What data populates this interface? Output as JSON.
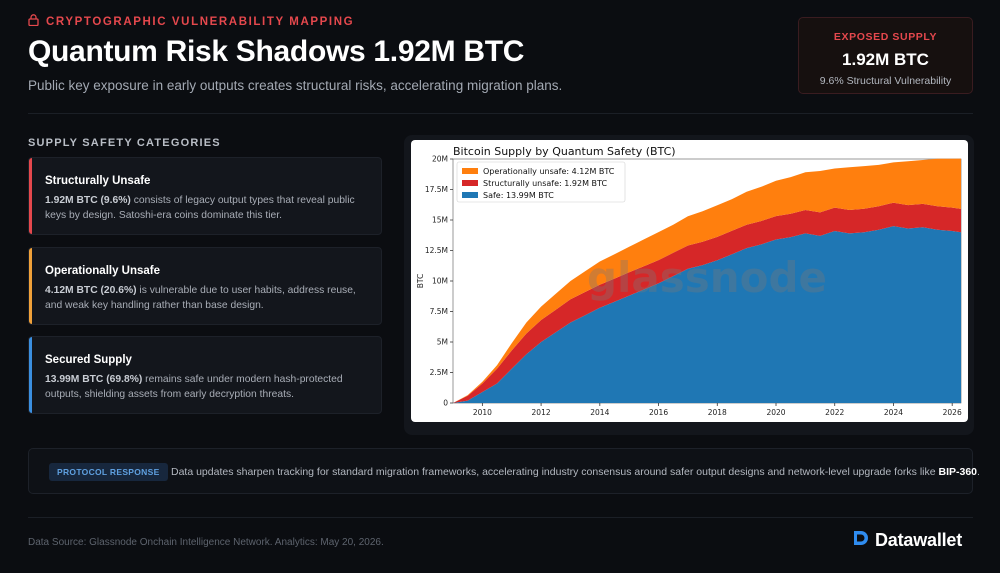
{
  "header": {
    "eyebrow": "CRYPTOGRAPHIC VULNERABILITY MAPPING",
    "title": "Quantum Risk Shadows 1.92M BTC",
    "subtitle": "Public key exposure in early outputs creates structural risks, accelerating migration plans."
  },
  "kpi": {
    "label": "EXPOSED SUPPLY",
    "value": "1.92M BTC",
    "sub": "9.6% Structural Vulnerability"
  },
  "categories": {
    "title": "SUPPLY SAFETY CATEGORIES",
    "items": [
      {
        "title": "Structurally Unsafe",
        "value": "1.92M BTC (9.6%)",
        "text": " consists of legacy output types that reveal public keys by design. Satoshi-era coins dominate this tier.",
        "color": "#e5484d"
      },
      {
        "title": "Operationally Unsafe",
        "value": "4.12M BTC (20.6%)",
        "text": " is vulnerable due to user habits, address reuse, and weak key handling rather than base design.",
        "color": "#f0a13a"
      },
      {
        "title": "Secured Supply",
        "value": "13.99M BTC (69.8%)",
        "text": " remains safe under modern hash-protected outputs, shielding assets from early decryption threats.",
        "color": "#3b8fe0"
      }
    ]
  },
  "chart_data": {
    "type": "area",
    "stacked": true,
    "title": "Bitcoin Supply by Quantum Safety (BTC)",
    "xlabel": "",
    "ylabel": "BTC",
    "watermark": "glassnode",
    "xlim": [
      2009,
      2026.3
    ],
    "ylim": [
      0,
      20000000
    ],
    "xticks": [
      "2010",
      "2012",
      "2014",
      "2016",
      "2018",
      "2020",
      "2022",
      "2024",
      "2026"
    ],
    "yticks": [
      "0",
      "2.5M",
      "5M",
      "7.5M",
      "10M",
      "12.5M",
      "15M",
      "17.5M",
      "20M"
    ],
    "legend_position": "top-left",
    "x": [
      2009,
      2009.5,
      2010,
      2010.5,
      2011,
      2011.5,
      2012,
      2012.5,
      2013,
      2013.5,
      2014,
      2014.5,
      2015,
      2015.5,
      2016,
      2016.5,
      2017,
      2017.5,
      2018,
      2018.5,
      2019,
      2019.5,
      2020,
      2020.5,
      2021,
      2021.5,
      2022,
      2022.5,
      2023,
      2023.5,
      2024,
      2024.5,
      2025,
      2025.5,
      2026,
      2026.3
    ],
    "series": [
      {
        "name": "Safe: 13.99M BTC",
        "color": "#1f77b4",
        "values": [
          0,
          200000,
          900000,
          1600000,
          2800000,
          4000000,
          5000000,
          5800000,
          6600000,
          7200000,
          7800000,
          8300000,
          8800000,
          9300000,
          9800000,
          10400000,
          11000000,
          11300000,
          11700000,
          12200000,
          12700000,
          13000000,
          13400000,
          13600000,
          13900000,
          13700000,
          14100000,
          13900000,
          14000000,
          14200000,
          14500000,
          14300000,
          14400000,
          14200000,
          14100000,
          13990000
        ]
      },
      {
        "name": "Structurally unsafe: 1.92M BTC",
        "color": "#d62728",
        "values": [
          0,
          400000,
          700000,
          1200000,
          1500000,
          1700000,
          1800000,
          1850000,
          1900000,
          1900000,
          1900000,
          1900000,
          1910000,
          1910000,
          1910000,
          1910000,
          1910000,
          1915000,
          1915000,
          1915000,
          1915000,
          1920000,
          1920000,
          1920000,
          1920000,
          1920000,
          1920000,
          1920000,
          1920000,
          1920000,
          1920000,
          1920000,
          1920000,
          1920000,
          1920000,
          1920000
        ]
      },
      {
        "name": "Operationally unsafe: 4.12M BTC",
        "color": "#ff7f0e",
        "values": [
          0,
          50000,
          150000,
          300000,
          600000,
          900000,
          1100000,
          1300000,
          1500000,
          1700000,
          1900000,
          2000000,
          2100000,
          2200000,
          2300000,
          2300000,
          2400000,
          2500000,
          2600000,
          2600000,
          2700000,
          2800000,
          2900000,
          3000000,
          3100000,
          3400000,
          3200000,
          3500000,
          3500000,
          3400000,
          3300000,
          3600000,
          3600000,
          3900000,
          4000000,
          4120000
        ]
      }
    ]
  },
  "protocol": {
    "tag": "PROTOCOL RESPONSE",
    "text": "Data updates sharpen tracking for standard migration frameworks, accelerating industry consensus around safer output designs and network-level upgrade forks like ",
    "highlight": "BIP-360",
    "end": "."
  },
  "footer": {
    "source": "Data Source: Glassnode Onchain Intelligence Network. Analytics: May 20, 2026.",
    "brand": "Datawallet",
    "brand_color": "#2f8cf0"
  }
}
